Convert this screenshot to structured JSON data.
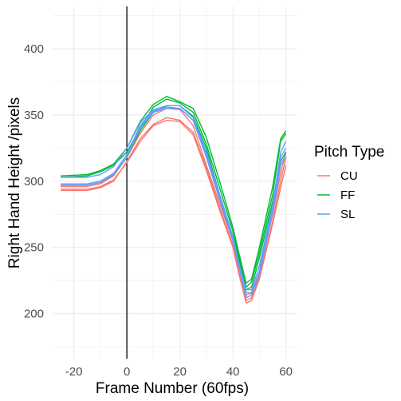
{
  "chart_data": {
    "type": "line",
    "title": "",
    "xlabel": "Frame Number (60fps)",
    "ylabel": "Right Hand Height /pixels",
    "xlim": [
      -28,
      64
    ],
    "ylim": [
      166,
      432
    ],
    "x_ticks": [
      "-20",
      "0",
      "20",
      "40",
      "60"
    ],
    "y_ticks": [
      "200",
      "250",
      "300",
      "350",
      "400"
    ],
    "grid": true,
    "vline_x": 0,
    "legend": {
      "title": "Pitch Type",
      "position": "right",
      "entries": [
        {
          "label": "CU",
          "color": "#F8766D"
        },
        {
          "label": "FF",
          "color": "#00BA38"
        },
        {
          "label": "SL",
          "color": "#619CFF"
        }
      ]
    },
    "series": [
      {
        "group": "CU",
        "color": "#F8766D",
        "points": [
          [
            -25,
            294
          ],
          [
            -15,
            294
          ],
          [
            -10,
            296
          ],
          [
            -5,
            301
          ],
          [
            0,
            314
          ],
          [
            5,
            330
          ],
          [
            10,
            342
          ],
          [
            15,
            346
          ],
          [
            20,
            345
          ],
          [
            25,
            335
          ],
          [
            30,
            308
          ],
          [
            35,
            278
          ],
          [
            40,
            250
          ],
          [
            42,
            232
          ],
          [
            45,
            208
          ],
          [
            47,
            210
          ],
          [
            50,
            226
          ],
          [
            55,
            268
          ],
          [
            58,
            295
          ],
          [
            60,
            312
          ]
        ]
      },
      {
        "group": "CU",
        "color": "#F8766D",
        "points": [
          [
            -25,
            293
          ],
          [
            -15,
            293
          ],
          [
            -10,
            295
          ],
          [
            -5,
            300
          ],
          [
            0,
            315
          ],
          [
            5,
            332
          ],
          [
            10,
            343
          ],
          [
            15,
            348
          ],
          [
            20,
            346
          ],
          [
            25,
            337
          ],
          [
            30,
            310
          ],
          [
            35,
            280
          ],
          [
            40,
            252
          ],
          [
            42,
            234
          ],
          [
            45,
            210
          ],
          [
            47,
            212
          ],
          [
            50,
            228
          ],
          [
            55,
            270
          ],
          [
            58,
            300
          ],
          [
            60,
            318
          ]
        ]
      },
      {
        "group": "CU",
        "color": "#F8766D",
        "points": [
          [
            -25,
            296
          ],
          [
            -15,
            296
          ],
          [
            -10,
            298
          ],
          [
            -5,
            304
          ],
          [
            0,
            318
          ],
          [
            5,
            336
          ],
          [
            10,
            350
          ],
          [
            15,
            355
          ],
          [
            20,
            354
          ],
          [
            25,
            342
          ],
          [
            30,
            312
          ],
          [
            35,
            283
          ],
          [
            40,
            255
          ],
          [
            42,
            238
          ],
          [
            45,
            214
          ],
          [
            47,
            216
          ],
          [
            50,
            232
          ],
          [
            55,
            275
          ],
          [
            58,
            306
          ],
          [
            60,
            322
          ]
        ]
      },
      {
        "group": "FF",
        "color": "#00BA38",
        "points": [
          [
            -25,
            303
          ],
          [
            -15,
            304
          ],
          [
            -10,
            307
          ],
          [
            -5,
            312
          ],
          [
            0,
            322
          ],
          [
            5,
            340
          ],
          [
            10,
            356
          ],
          [
            15,
            362
          ],
          [
            20,
            359
          ],
          [
            25,
            352
          ],
          [
            30,
            328
          ],
          [
            35,
            295
          ],
          [
            40,
            262
          ],
          [
            42,
            245
          ],
          [
            45,
            220
          ],
          [
            47,
            224
          ],
          [
            50,
            246
          ],
          [
            55,
            290
          ],
          [
            58,
            330
          ],
          [
            60,
            336
          ]
        ]
      },
      {
        "group": "FF",
        "color": "#00BA38",
        "points": [
          [
            -25,
            304
          ],
          [
            -15,
            305
          ],
          [
            -10,
            308
          ],
          [
            -5,
            313
          ],
          [
            0,
            325
          ],
          [
            5,
            345
          ],
          [
            10,
            358
          ],
          [
            15,
            364
          ],
          [
            20,
            360
          ],
          [
            25,
            355
          ],
          [
            30,
            333
          ],
          [
            35,
            300
          ],
          [
            40,
            265
          ],
          [
            42,
            248
          ],
          [
            45,
            223
          ],
          [
            47,
            226
          ],
          [
            50,
            250
          ],
          [
            55,
            296
          ],
          [
            58,
            332
          ],
          [
            60,
            338
          ]
        ]
      },
      {
        "group": "FF",
        "color": "#00BA38",
        "points": [
          [
            -25,
            297
          ],
          [
            -15,
            297
          ],
          [
            -10,
            299
          ],
          [
            -5,
            305
          ],
          [
            0,
            318
          ],
          [
            5,
            338
          ],
          [
            10,
            352
          ],
          [
            15,
            357
          ],
          [
            20,
            357
          ],
          [
            25,
            349
          ],
          [
            30,
            325
          ],
          [
            35,
            290
          ],
          [
            40,
            258
          ],
          [
            42,
            242
          ],
          [
            45,
            218
          ],
          [
            47,
            220
          ],
          [
            50,
            242
          ],
          [
            55,
            285
          ],
          [
            58,
            315
          ],
          [
            60,
            322
          ]
        ]
      },
      {
        "group": "SL",
        "color": "#619CFF",
        "points": [
          [
            -25,
            303
          ],
          [
            -15,
            303
          ],
          [
            -10,
            305
          ],
          [
            -5,
            311
          ],
          [
            0,
            325
          ],
          [
            5,
            344
          ],
          [
            10,
            354
          ],
          [
            15,
            357
          ],
          [
            20,
            357
          ],
          [
            25,
            348
          ],
          [
            30,
            322
          ],
          [
            35,
            290
          ],
          [
            40,
            258
          ],
          [
            42,
            240
          ],
          [
            45,
            216
          ],
          [
            47,
            215
          ],
          [
            50,
            232
          ],
          [
            55,
            280
          ],
          [
            58,
            318
          ],
          [
            60,
            325
          ]
        ]
      },
      {
        "group": "SL",
        "color": "#619CFF",
        "points": [
          [
            -25,
            297
          ],
          [
            -15,
            297
          ],
          [
            -10,
            299
          ],
          [
            -5,
            305
          ],
          [
            0,
            318
          ],
          [
            5,
            340
          ],
          [
            10,
            352
          ],
          [
            15,
            355
          ],
          [
            20,
            355
          ],
          [
            25,
            346
          ],
          [
            30,
            318
          ],
          [
            35,
            286
          ],
          [
            40,
            255
          ],
          [
            42,
            238
          ],
          [
            45,
            212
          ],
          [
            47,
            214
          ],
          [
            50,
            230
          ],
          [
            55,
            276
          ],
          [
            58,
            312
          ],
          [
            60,
            320
          ]
        ]
      },
      {
        "group": "SL",
        "color": "#619CFF",
        "points": [
          [
            -25,
            298
          ],
          [
            -15,
            298
          ],
          [
            -10,
            300
          ],
          [
            -5,
            306
          ],
          [
            0,
            320
          ],
          [
            5,
            342
          ],
          [
            10,
            353
          ],
          [
            15,
            356
          ],
          [
            20,
            355
          ],
          [
            25,
            346
          ],
          [
            30,
            320
          ],
          [
            35,
            288
          ],
          [
            40,
            256
          ],
          [
            42,
            240
          ],
          [
            45,
            218
          ],
          [
            47,
            218
          ],
          [
            50,
            236
          ],
          [
            55,
            282
          ],
          [
            58,
            322
          ],
          [
            60,
            330
          ]
        ]
      }
    ]
  }
}
